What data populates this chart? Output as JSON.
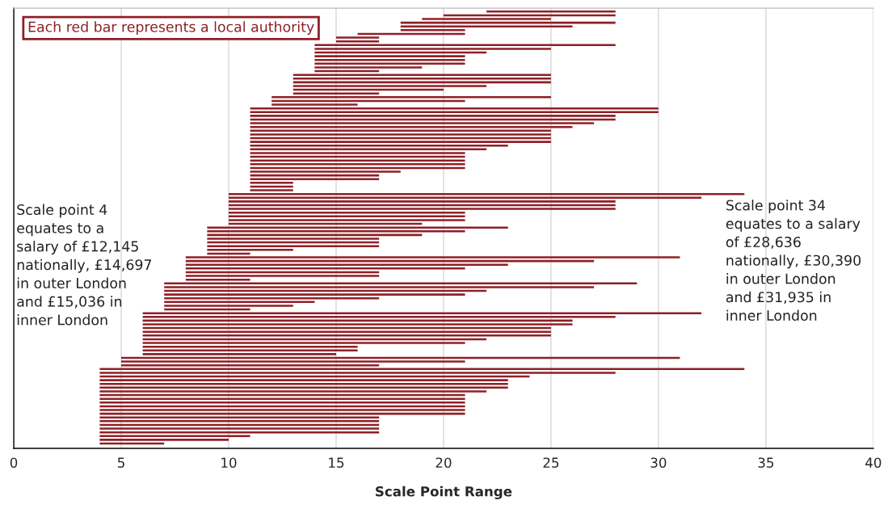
{
  "chart_data": {
    "type": "bar",
    "orientation": "horizontal",
    "xlabel": "Scale Point Range",
    "categories": [
      null,
      null,
      null,
      null,
      null,
      null,
      null,
      null,
      null,
      null,
      null,
      null,
      null,
      null,
      null,
      null,
      null,
      null,
      null,
      null,
      null,
      null,
      null,
      null,
      null,
      null,
      null,
      null,
      null,
      null,
      null,
      null,
      null,
      null,
      null,
      null,
      null,
      null,
      null,
      null,
      null,
      null,
      null,
      null,
      null,
      null,
      null,
      null,
      null,
      null,
      null,
      null,
      null,
      null,
      null,
      null,
      null,
      null,
      null,
      null,
      null,
      null,
      null,
      null,
      null,
      null,
      null,
      null,
      null,
      null,
      null,
      null,
      null,
      null,
      null,
      null,
      null,
      null,
      null,
      null,
      null,
      null,
      null,
      null,
      null,
      null,
      null,
      null,
      null,
      null,
      null,
      null,
      null,
      null,
      null,
      null,
      null,
      null,
      null,
      null,
      null,
      null,
      null,
      null,
      null,
      null,
      null,
      null,
      null,
      null,
      null,
      null,
      null,
      null,
      null,
      null,
      null
    ],
    "base": [
      22,
      20,
      19,
      18,
      18,
      18,
      16,
      15,
      15,
      14,
      14,
      14,
      14,
      14,
      14,
      14,
      14,
      13,
      13,
      13,
      13,
      13,
      13,
      12,
      12,
      12,
      11,
      11,
      11,
      11,
      11,
      11,
      11,
      11,
      11,
      11,
      11,
      11,
      11,
      11,
      11,
      11,
      11,
      11,
      11,
      11,
      11,
      11,
      11,
      10,
      10,
      10,
      10,
      10,
      10,
      10,
      10,
      10,
      9,
      9,
      9,
      9,
      9,
      9,
      9,
      9,
      8,
      8,
      8,
      8,
      8,
      8,
      8,
      7,
      7,
      7,
      7,
      7,
      7,
      7,
      7,
      6,
      6,
      6,
      6,
      6,
      6,
      6,
      6,
      6,
      6,
      6,
      6,
      5,
      5,
      5,
      4,
      4,
      4,
      4,
      4,
      4,
      4,
      4,
      4,
      4,
      4,
      4,
      4,
      4,
      4,
      4,
      4,
      4,
      4,
      4,
      4
    ],
    "values": [
      6,
      8,
      6,
      10,
      8,
      3,
      5,
      2,
      2,
      14,
      11,
      8,
      7,
      7,
      7,
      5,
      3,
      12,
      12,
      12,
      9,
      7,
      4,
      13,
      9,
      4,
      19,
      19,
      17,
      17,
      16,
      15,
      14,
      14,
      14,
      14,
      12,
      11,
      10,
      10,
      10,
      10,
      10,
      7,
      6,
      6,
      2,
      2,
      2,
      24,
      22,
      18,
      18,
      18,
      11,
      11,
      11,
      9,
      14,
      12,
      10,
      8,
      8,
      8,
      4,
      2,
      23,
      19,
      15,
      13,
      9,
      9,
      3,
      22,
      20,
      15,
      14,
      10,
      7,
      6,
      4,
      26,
      22,
      20,
      20,
      19,
      19,
      19,
      16,
      15,
      10,
      10,
      9,
      26,
      16,
      12,
      30,
      24,
      20,
      19,
      19,
      19,
      18,
      17,
      17,
      17,
      17,
      17,
      17,
      13,
      13,
      13,
      13,
      13,
      7,
      6,
      3
    ],
    "color": "#8e2027",
    "xlim": [
      0,
      40
    ],
    "xticks": [
      0,
      5,
      10,
      15,
      20,
      25,
      30,
      35,
      40
    ],
    "grid": "x",
    "annotations": [
      "Each red bar represents a local authority",
      "Scale point 4\nequates to a\nsalary of £12,145\nnationally, £14,697\nin outer London\nand £15,036 in\ninner London",
      "Scale point 34\nequates to a salary\nof £28,636\nnationally, £30,390\nin outer London\nand £31,935 in\ninner London"
    ]
  }
}
